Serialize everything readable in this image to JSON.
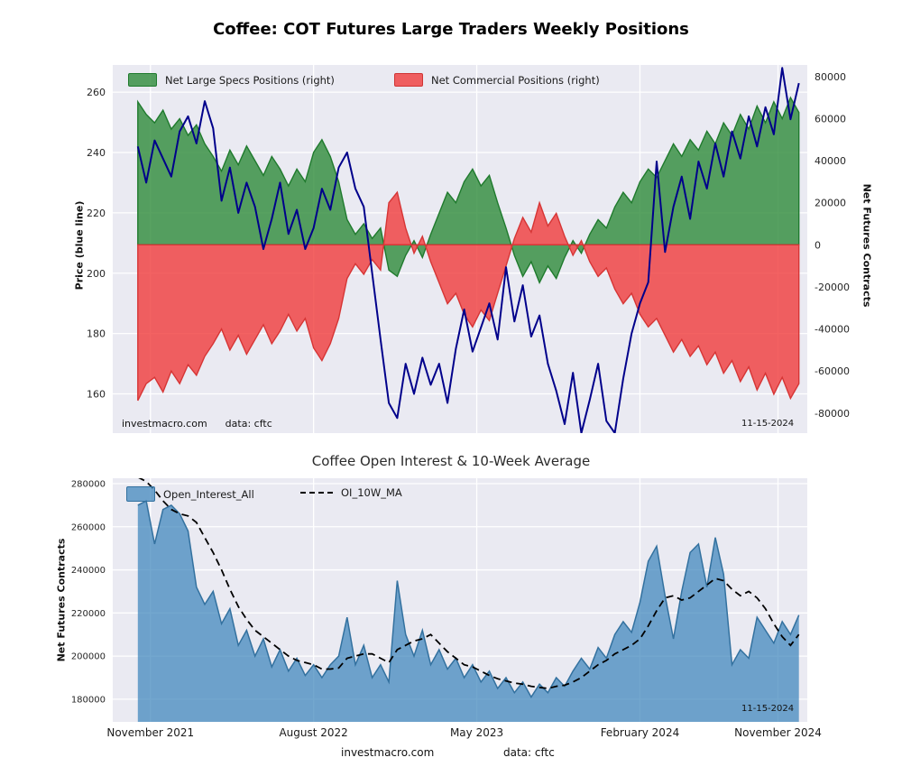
{
  "annotations": {
    "site": "investmacro.com",
    "data_source": "data: cftc",
    "date": "11-15-2024"
  },
  "chart_data": [
    {
      "type": "area+line",
      "title": "Coffee: COT Futures Large Traders Weekly Positions",
      "ylabel_left": "Price (blue line)",
      "ylabel_right": "Net Futures Contracts",
      "legend": [
        {
          "label": "Net Large Specs Positions (right)",
          "color": "#2e8b3a",
          "type": "area"
        },
        {
          "label": "Net Commercial Positions (right)",
          "color": "#f03b3b",
          "type": "area"
        }
      ],
      "colors": {
        "plot_bg": "#eaeaf2",
        "grid": "#ffffff",
        "price_line": "#00008b",
        "specs_green": "#2e8b3a",
        "specs_green_edge": "#1f7a2d",
        "commercials_red": "#f03b3b",
        "commercials_red_edge": "#d63535"
      },
      "xlim": [
        0,
        166
      ],
      "ylim_left": [
        147,
        269
      ],
      "ylim_right": [
        -89500,
        85500
      ],
      "yticks_left": [
        160,
        180,
        200,
        220,
        240,
        260
      ],
      "yticks_right": [
        -80000,
        -60000,
        -40000,
        -20000,
        0,
        20000,
        40000,
        60000,
        80000
      ],
      "xticks": {
        "weeks": [
          9,
          48,
          87,
          126,
          159
        ],
        "labels": [
          "November 2021",
          "August 2022",
          "May 2023",
          "February 2024",
          "November 2024"
        ],
        "show_labels": false
      },
      "series": {
        "week_start": 6,
        "week_step": 2,
        "price": [
          242,
          230,
          244,
          238,
          232,
          247,
          252,
          243,
          257,
          248,
          224,
          235,
          220,
          230,
          222,
          208,
          218,
          230,
          213,
          221,
          208,
          215,
          228,
          221,
          235,
          240,
          228,
          222,
          200,
          178,
          157,
          152,
          170,
          160,
          172,
          163,
          170,
          157,
          175,
          188,
          174,
          182,
          190,
          178,
          202,
          184,
          196,
          179,
          186,
          170,
          161,
          150,
          167,
          147,
          158,
          170,
          151,
          147,
          165,
          180,
          190,
          197,
          237,
          207,
          222,
          232,
          218,
          237,
          228,
          243,
          232,
          247,
          238,
          252,
          242,
          255,
          246,
          268,
          251,
          263
        ],
        "net_large_specs": [
          68000,
          62000,
          58000,
          64000,
          55000,
          60000,
          52000,
          57000,
          48000,
          42000,
          35000,
          45000,
          38000,
          47000,
          40000,
          33000,
          42000,
          36000,
          28000,
          36000,
          30000,
          44000,
          50000,
          42000,
          30000,
          12000,
          5000,
          10000,
          3000,
          8000,
          -12000,
          -15000,
          -5000,
          2000,
          -6000,
          5000,
          15000,
          25000,
          20000,
          30000,
          36000,
          28000,
          33000,
          20000,
          8000,
          -5000,
          -15000,
          -8000,
          -18000,
          -10000,
          -16000,
          -6000,
          2000,
          -4000,
          5000,
          12000,
          8000,
          18000,
          25000,
          20000,
          30000,
          36000,
          32000,
          40000,
          48000,
          42000,
          50000,
          45000,
          54000,
          48000,
          58000,
          52000,
          62000,
          55000,
          66000,
          58000,
          68000,
          60000,
          70000,
          63000
        ],
        "net_commercials": [
          -74000,
          -66000,
          -63000,
          -70000,
          -60000,
          -66000,
          -57000,
          -62000,
          -53000,
          -47000,
          -40000,
          -50000,
          -43000,
          -52000,
          -45000,
          -38000,
          -47000,
          -41000,
          -33000,
          -41000,
          -35000,
          -49000,
          -55000,
          -47000,
          -35000,
          -16000,
          -9000,
          -14000,
          -7000,
          -12000,
          20000,
          25000,
          8000,
          -4000,
          4000,
          -8000,
          -18000,
          -28000,
          -23000,
          -33000,
          -39000,
          -31000,
          -36000,
          -23000,
          -10000,
          3000,
          13000,
          6000,
          20000,
          9000,
          15000,
          4000,
          -5000,
          2000,
          -8000,
          -15000,
          -11000,
          -21000,
          -28000,
          -23000,
          -33000,
          -39000,
          -35000,
          -43000,
          -51000,
          -45000,
          -53000,
          -48000,
          -57000,
          -51000,
          -61000,
          -55000,
          -65000,
          -58000,
          -69000,
          -61000,
          -71000,
          -63000,
          -73000,
          -66000
        ]
      }
    },
    {
      "type": "area+line",
      "title": "Coffee Open Interest & 10-Week Average",
      "ylabel": "Net Futures Contracts",
      "legend": [
        {
          "label": "Open_Interest_All",
          "color": "#3d85bb",
          "type": "area"
        },
        {
          "label": "OI_10W_MA",
          "color": "#000000",
          "type": "dashed-line"
        }
      ],
      "colors": {
        "plot_bg": "#eaeaf2",
        "grid": "#ffffff",
        "oi_fill": "#3d85bb",
        "oi_edge": "#33719f",
        "ma_line": "#000000"
      },
      "xlim": [
        0,
        166
      ],
      "ylim": [
        169500,
        282500
      ],
      "yticks": [
        180000,
        200000,
        220000,
        240000,
        260000,
        280000
      ],
      "xticks": {
        "weeks": [
          9,
          48,
          87,
          126,
          159
        ],
        "labels": [
          "November 2021",
          "August 2022",
          "May 2023",
          "February 2024",
          "November 2024"
        ],
        "show_labels": true
      },
      "series": {
        "week_start": 6,
        "week_step": 2,
        "open_interest": [
          270000,
          272000,
          252000,
          268000,
          270000,
          266000,
          258000,
          232000,
          224000,
          230000,
          215000,
          222000,
          205000,
          212000,
          200000,
          208000,
          195000,
          203000,
          193000,
          199000,
          191000,
          196000,
          190000,
          196000,
          200000,
          218000,
          196000,
          205000,
          190000,
          196000,
          188000,
          235000,
          210000,
          200000,
          212000,
          196000,
          203000,
          194000,
          199000,
          190000,
          196000,
          188000,
          193000,
          185000,
          190000,
          183000,
          188000,
          181000,
          187000,
          183000,
          190000,
          186000,
          193000,
          199000,
          194000,
          204000,
          199000,
          210000,
          216000,
          211000,
          225000,
          244000,
          251000,
          228000,
          208000,
          230000,
          248000,
          252000,
          232000,
          255000,
          238000,
          196000,
          203000,
          199000,
          218000,
          212000,
          206000,
          216000,
          210000,
          219000
        ],
        "oi_10w_ma": [
          283000,
          281000,
          277000,
          272000,
          268000,
          266000,
          265000,
          262000,
          255000,
          248000,
          240000,
          231000,
          223000,
          217000,
          212000,
          209000,
          206000,
          203000,
          200000,
          198000,
          197000,
          196000,
          194000,
          194000,
          194500,
          199000,
          200000,
          201000,
          201000,
          199000,
          197000,
          203000,
          205000,
          207000,
          208000,
          210000,
          206000,
          202000,
          199000,
          196000,
          195000,
          193000,
          191000,
          189500,
          188500,
          187500,
          187000,
          186000,
          185500,
          185000,
          186000,
          186500,
          188000,
          190000,
          193000,
          196000,
          198000,
          201000,
          203000,
          205000,
          208000,
          214000,
          221000,
          227000,
          228000,
          226000,
          227000,
          230000,
          233000,
          236000,
          235000,
          231000,
          228000,
          230000,
          227000,
          222000,
          215000,
          209000,
          205000,
          210000
        ]
      }
    }
  ]
}
